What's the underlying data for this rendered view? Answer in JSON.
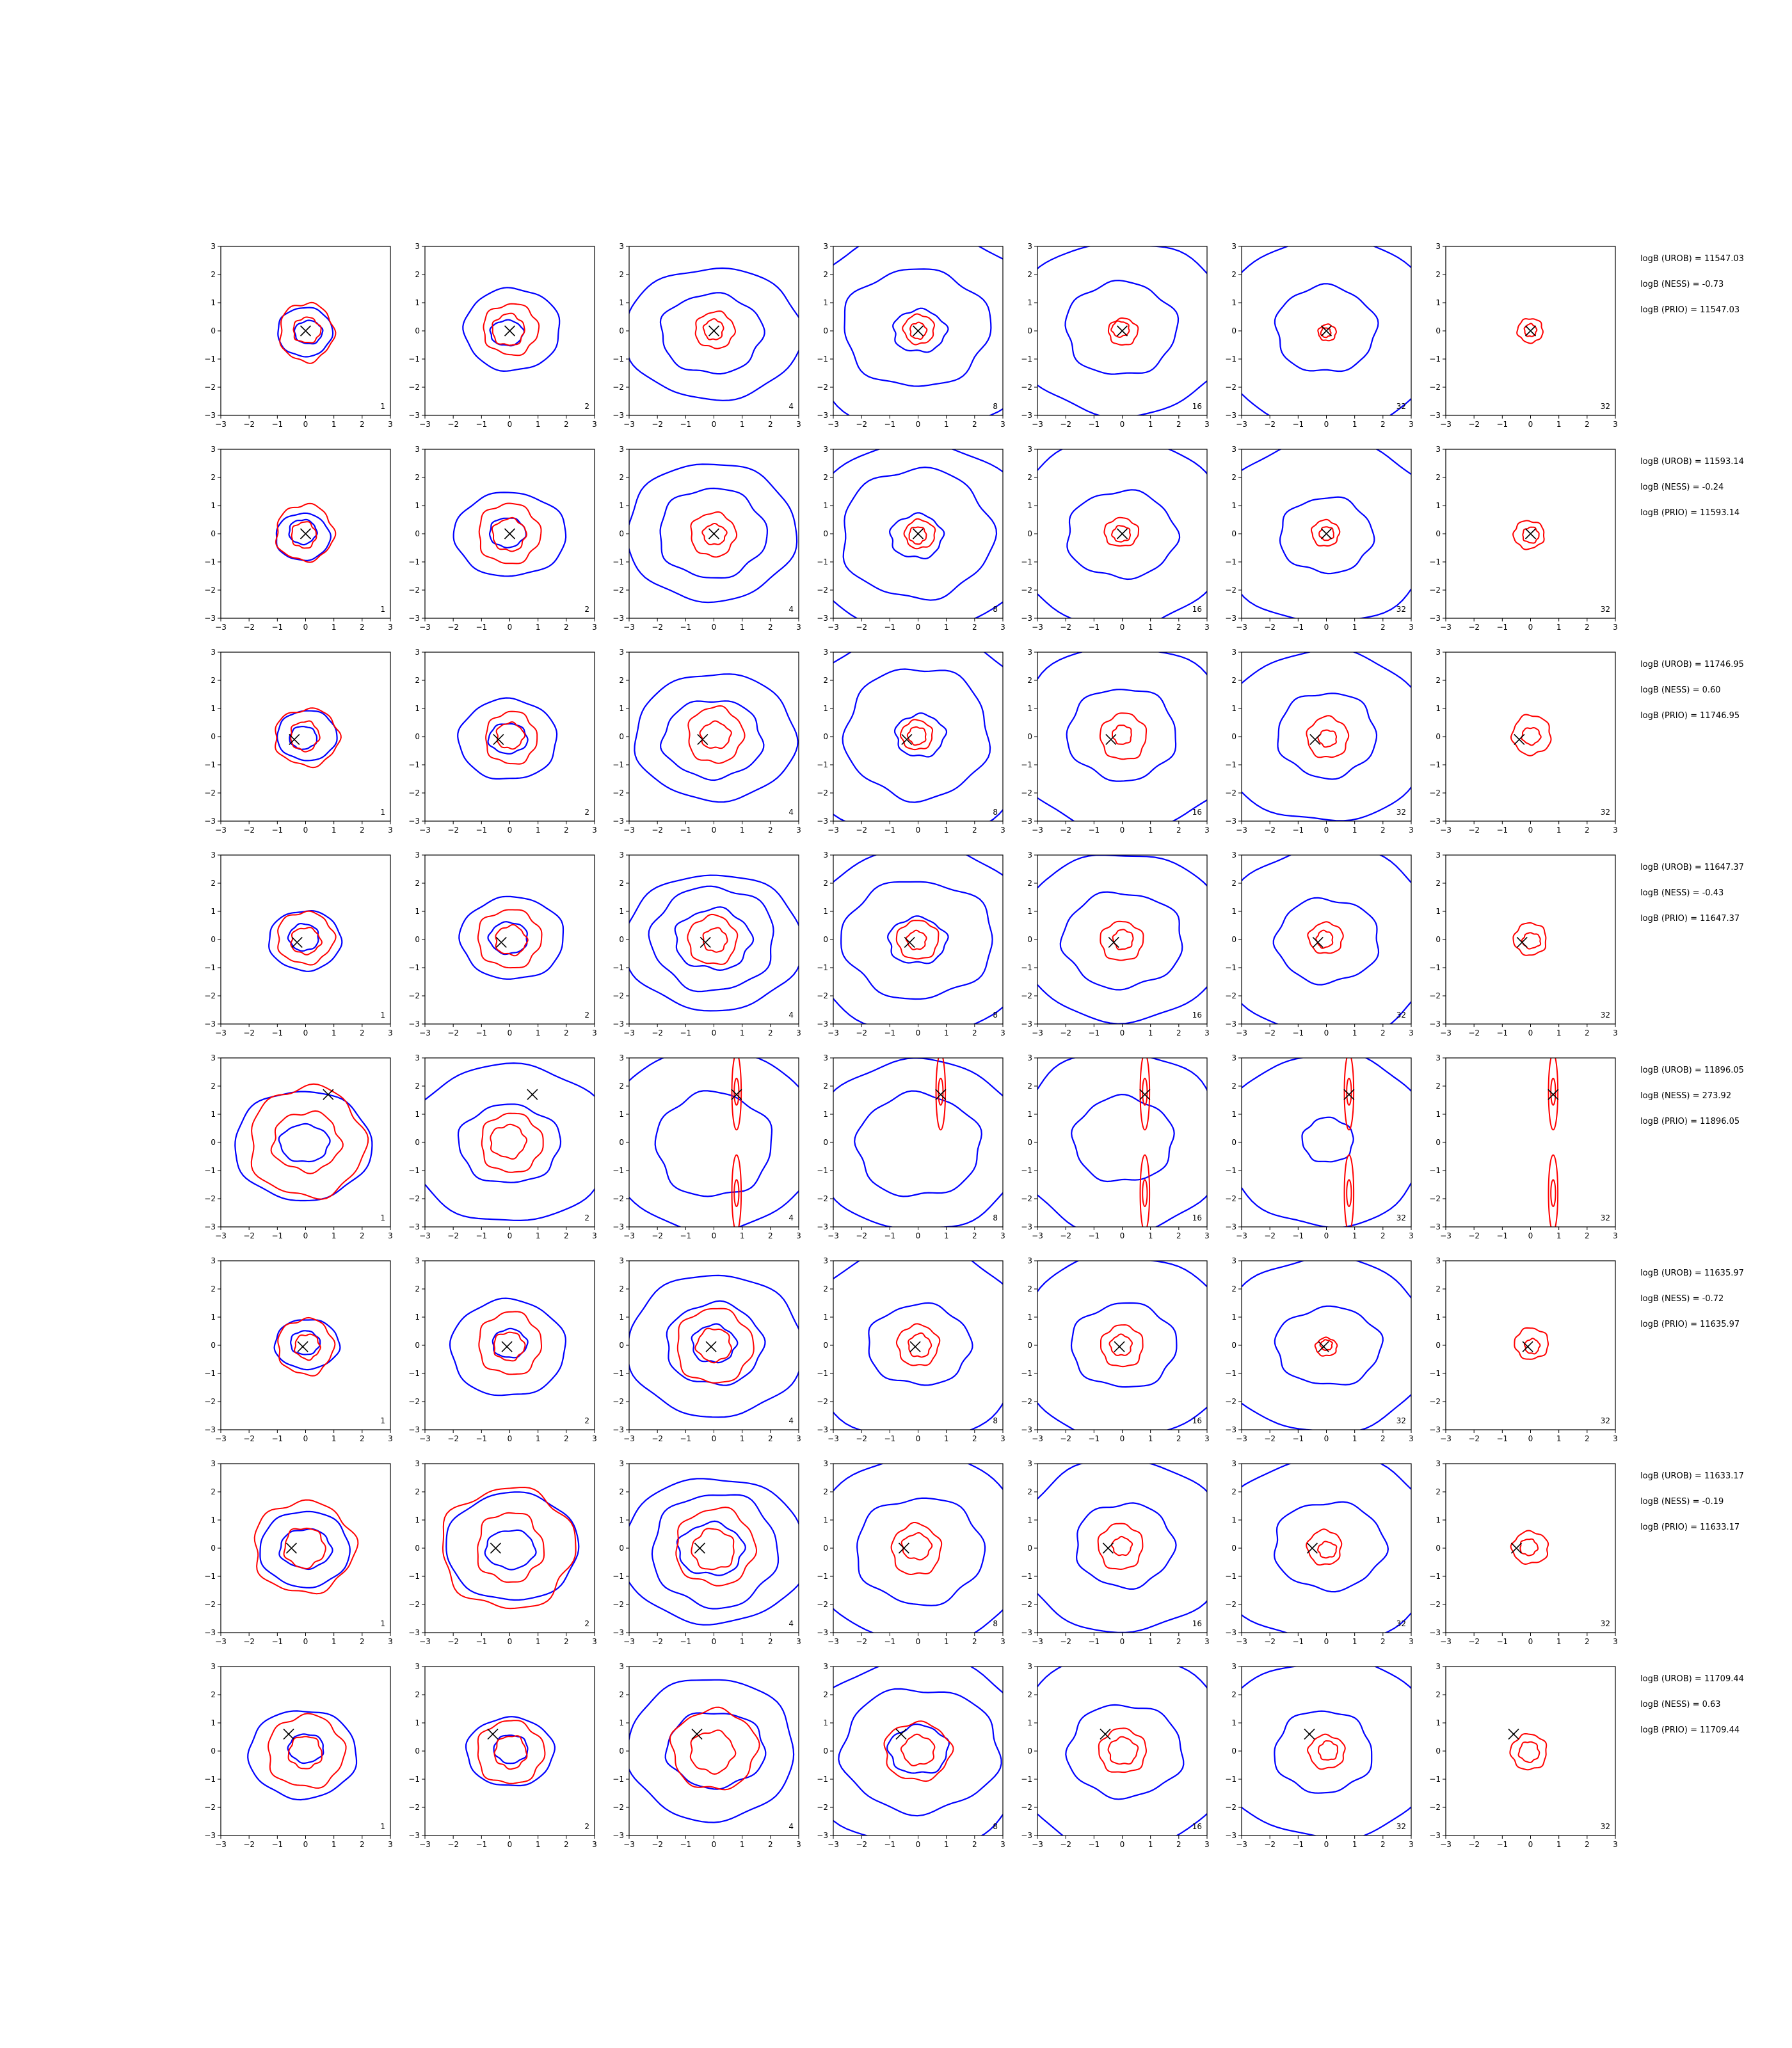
{
  "chart_data": {
    "type": "contour",
    "layout": {
      "rows": 8,
      "cols": 7
    },
    "axis": {
      "xlim": [
        -3,
        3
      ],
      "ylim": [
        -3,
        3
      ],
      "ticks": [
        -3,
        -2,
        -1,
        0,
        1,
        2,
        3
      ],
      "tick_labels": [
        "−3",
        "−2",
        "−1",
        "0",
        "1",
        "2",
        "3"
      ]
    },
    "colors": {
      "outer_contours": "#0000ff",
      "inner_contours": "#ff0000",
      "marker": "#000000"
    },
    "column_labels": [
      "1",
      "2",
      "4",
      "8",
      "16",
      "32",
      "32"
    ],
    "rows": [
      {
        "marker": [
          0.0,
          0.0
        ],
        "stats": [
          "logB (UROB) = 11547.03",
          "logB (NESS) = -0.73",
          "logB (PRIO) = 11547.03"
        ],
        "panels": [
          {
            "blue": [
              0.9,
              0.45
            ],
            "red": [
              1.0,
              0.45
            ]
          },
          {
            "blue": [
              1.6,
              0.5
            ],
            "red": [
              1.0,
              0.55
            ]
          },
          {
            "blue": [
              2.7,
              1.6
            ],
            "red": [
              0.7,
              0.35
            ]
          },
          {
            "blue": [
              3.8,
              2.4,
              0.85
            ],
            "red": [
              0.5,
              0.3
            ]
          },
          {
            "blue": [
              3.5,
              1.7
            ],
            "red": [
              0.5,
              0.3
            ]
          },
          {
            "blue": [
              3.6,
              1.6
            ],
            "red": [
              0.3,
              0.18
            ]
          },
          {
            "blue": [],
            "red": [
              0.45,
              0.22
            ]
          }
        ]
      },
      {
        "marker": [
          0.0,
          0.0
        ],
        "stats": [
          "logB (UROB) = 11593.14",
          "logB (NESS) = -0.24",
          "logB (PRIO) = 11593.14"
        ],
        "panels": [
          {
            "blue": [
              0.9,
              0.45
            ],
            "red": [
              1.0,
              0.45
            ]
          },
          {
            "blue": [
              1.7,
              0.55
            ],
            "red": [
              1.05,
              0.55
            ]
          },
          {
            "blue": [
              2.6,
              1.7
            ],
            "red": [
              0.75,
              0.4
            ]
          },
          {
            "blue": [
              3.7,
              2.5,
              0.8
            ],
            "red": [
              0.55,
              0.3
            ]
          },
          {
            "blue": [
              3.5,
              1.7
            ],
            "red": [
              0.55,
              0.3
            ]
          },
          {
            "blue": [
              3.6,
              1.5
            ],
            "red": [
              0.5,
              0.25
            ]
          },
          {
            "blue": [],
            "red": [
              0.55,
              0.3
            ]
          }
        ]
      },
      {
        "marker": [
          -0.4,
          -0.1
        ],
        "stats": [
          "logB (UROB) = 11746.95",
          "logB (NESS) = 0.60",
          "logB (PRIO) = 11746.95"
        ],
        "panels": [
          {
            "blue": [
              1.0,
              0.45
            ],
            "red": [
              1.05,
              0.5
            ]
          },
          {
            "blue": [
              1.5,
              0.6
            ],
            "red": [
              0.95,
              0.5
            ]
          },
          {
            "blue": [
              2.5,
              1.6
            ],
            "red": [
              1.0,
              0.5
            ]
          },
          {
            "blue": [
              3.8,
              2.4,
              0.8
            ],
            "red": [
              0.55,
              0.3
            ]
          },
          {
            "blue": [
              3.6,
              1.7
            ],
            "red": [
              0.8,
              0.35
            ]
          },
          {
            "blue": [
              3.5,
              1.6
            ],
            "red": [
              0.7,
              0.3
            ]
          },
          {
            "blue": [],
            "red": [
              0.7,
              0.3
            ]
          }
        ]
      },
      {
        "marker": [
          -0.3,
          -0.1
        ],
        "stats": [
          "logB (UROB) = 11647.37",
          "logB (NESS) = -0.43",
          "logB (PRIO) = 11647.37"
        ],
        "panels": [
          {
            "blue": [
              1.1,
              0.5
            ],
            "red": [
              1.0,
              0.5
            ]
          },
          {
            "blue": [
              1.6,
              0.6
            ],
            "red": [
              1.1,
              0.55
            ]
          },
          {
            "blue": [
              2.8,
              2.0,
              1.2
            ],
            "red": [
              0.9,
              0.4
            ]
          },
          {
            "blue": [
              3.6,
              2.3,
              0.9
            ],
            "red": [
              0.7,
              0.35
            ]
          },
          {
            "blue": [
              3.4,
              1.9
            ],
            "red": [
              0.7,
              0.35
            ]
          },
          {
            "blue": [
              3.6,
              1.7
            ],
            "red": [
              0.55,
              0.3
            ]
          },
          {
            "blue": [],
            "red": [
              0.6,
              0.3
            ]
          }
        ]
      },
      {
        "marker": [
          0.8,
          1.7
        ],
        "stats": [
          "logB (UROB) = 11896.05",
          "logB (NESS) = 273.92",
          "logB (PRIO) = 11896.05"
        ],
        "panels": [
          {
            "blue": [
              2.1,
              0.75
            ],
            "red": [
              1.9,
              1.1
            ]
          },
          {
            "blue": [
              3.2,
              1.6
            ],
            "red": [
              1.0,
              0.6
            ]
          },
          {
            "blue": [
              3.4,
              1.9
            ],
            "red": [
              0.3,
              0.15
            ]
          },
          {
            "blue": [
              3.4,
              1.9
            ],
            "red": [
              0.3,
              0.15
            ]
          },
          {
            "blue": [
              3.4,
              1.6
            ],
            "red": [
              0.3,
              0.15
            ]
          },
          {
            "blue": [
              3.4,
              0.85
            ],
            "red": [
              0.3,
              0.15
            ]
          },
          {
            "blue": [],
            "red": [
              0.3,
              0.15
            ]
          }
        ]
      },
      {
        "marker": [
          -0.1,
          -0.05
        ],
        "stats": [
          "logB (UROB) = 11635.97",
          "logB (NESS) = -0.72",
          "logB (PRIO) = 11635.97"
        ],
        "panels": [
          {
            "blue": [
              1.0,
              0.45
            ],
            "red": [
              1.0,
              0.45
            ]
          },
          {
            "blue": [
              1.8,
              0.55
            ],
            "red": [
              1.1,
              0.5
            ]
          },
          {
            "blue": [
              2.8,
              1.6,
              0.7
            ],
            "red": [
              1.3,
              0.6
            ]
          },
          {
            "blue": [
              3.6,
              1.6
            ],
            "red": [
              0.7,
              0.4
            ]
          },
          {
            "blue": [
              3.6,
              1.7
            ],
            "red": [
              0.7,
              0.35
            ]
          },
          {
            "blue": [
              3.6,
              1.6
            ],
            "red": [
              0.35,
              0.2
            ]
          },
          {
            "blue": [],
            "red": [
              0.55,
              0.25
            ]
          }
        ]
      },
      {
        "marker": [
          -0.5,
          0.0
        ],
        "stats": [
          "logB (UROB) = 11633.17",
          "logB (NESS) = -0.19",
          "logB (PRIO) = 11633.17"
        ],
        "panels": [
          {
            "blue": [
              1.4,
              0.8
            ],
            "red": [
              1.7,
              0.7
            ]
          },
          {
            "blue": [
              2.1,
              0.8
            ],
            "red": [
              2.2,
              1.2
            ]
          },
          {
            "blue": [
              3.0,
              2.1,
              1.0
            ],
            "red": [
              1.3,
              0.7
            ]
          },
          {
            "blue": [
              3.6,
              2.0
            ],
            "red": [
              0.9,
              0.5
            ]
          },
          {
            "blue": [
              3.5,
              1.6
            ],
            "red": [
              0.8,
              0.35
            ]
          },
          {
            "blue": [
              3.5,
              1.7
            ],
            "red": [
              0.6,
              0.3
            ]
          },
          {
            "blue": [],
            "red": [
              0.6,
              0.3
            ]
          }
        ]
      },
      {
        "marker": [
          -0.6,
          0.6
        ],
        "stats": [
          "logB (UROB) = 11709.44",
          "logB (NESS) = 0.63",
          "logB (PRIO) = 11709.44"
        ],
        "panels": [
          {
            "blue": [
              1.7,
              0.55
            ],
            "red": [
              1.4,
              0.55
            ]
          },
          {
            "blue": [
              1.4,
              0.55
            ],
            "red": [
              1.2,
              0.55
            ]
          },
          {
            "blue": [
              2.7,
              1.5
            ],
            "red": [
              1.5,
              0.8
            ]
          },
          {
            "blue": [
              3.8,
              2.5,
              0.95
            ],
            "red": [
              1.1,
              0.55
            ]
          },
          {
            "blue": [
              3.7,
              1.9
            ],
            "red": [
              0.8,
              0.5
            ]
          },
          {
            "blue": [
              3.5,
              1.5
            ],
            "red": [
              0.6,
              0.35
            ]
          },
          {
            "blue": [],
            "red": [
              0.6,
              0.35
            ]
          }
        ]
      }
    ]
  }
}
